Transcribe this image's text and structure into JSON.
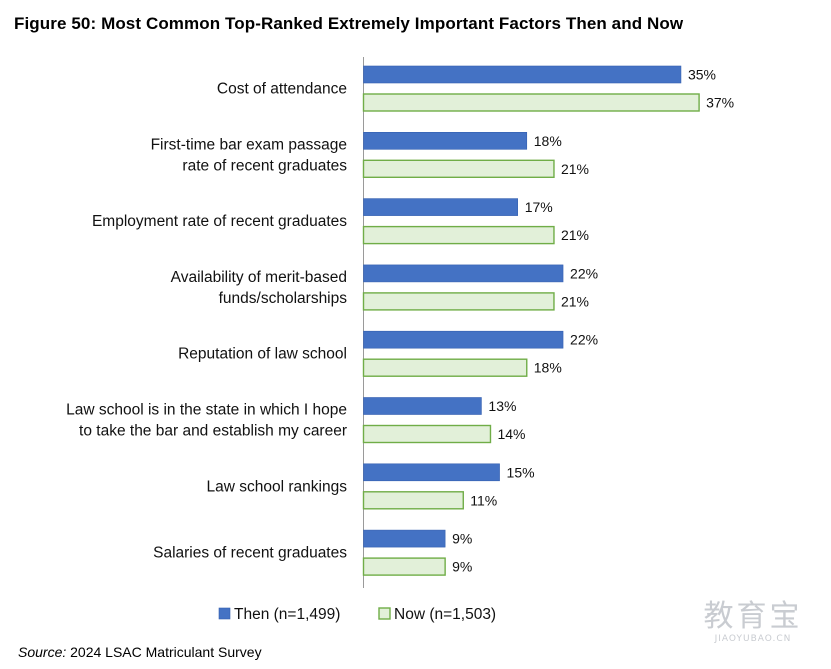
{
  "chart_data": {
    "type": "bar",
    "orientation": "horizontal",
    "title": "Figure 50: Most Common Top-Ranked Extremely Important Factors Then and Now",
    "categories": [
      [
        "Cost of attendance"
      ],
      [
        "First-time bar exam passage",
        "rate of recent graduates"
      ],
      [
        "Employment rate of recent graduates"
      ],
      [
        "Availability of merit-based",
        "funds/scholarships"
      ],
      [
        "Reputation of law school"
      ],
      [
        "Law school is in the state in which I hope",
        "to take the bar and establish my career"
      ],
      [
        "Law school rankings"
      ],
      [
        "Salaries of recent graduates"
      ]
    ],
    "series": [
      {
        "name": "Then (n=1,499)",
        "values": [
          35,
          18,
          17,
          22,
          22,
          13,
          15,
          9
        ],
        "labels": [
          "35%",
          "18%",
          "17%",
          "22%",
          "22%",
          "13%",
          "15%",
          "9%"
        ],
        "fill": "#4472c4",
        "stroke": "#3560b0"
      },
      {
        "name": "Now (n=1,503)",
        "values": [
          37,
          21,
          21,
          21,
          18,
          14,
          11,
          9
        ],
        "labels": [
          "37%",
          "21%",
          "21%",
          "21%",
          "18%",
          "14%",
          "11%",
          "9%"
        ],
        "fill": "#e2f0d9",
        "stroke": "#70ad47"
      }
    ],
    "xlim": [
      0,
      50
    ],
    "grid": false,
    "legend_position": "bottom"
  },
  "source": {
    "label": "Source:",
    "text": "2024 LSAC Matriculant Survey"
  },
  "watermark": {
    "big": "教育宝",
    "small": "JIAOYUBAO.CN"
  }
}
